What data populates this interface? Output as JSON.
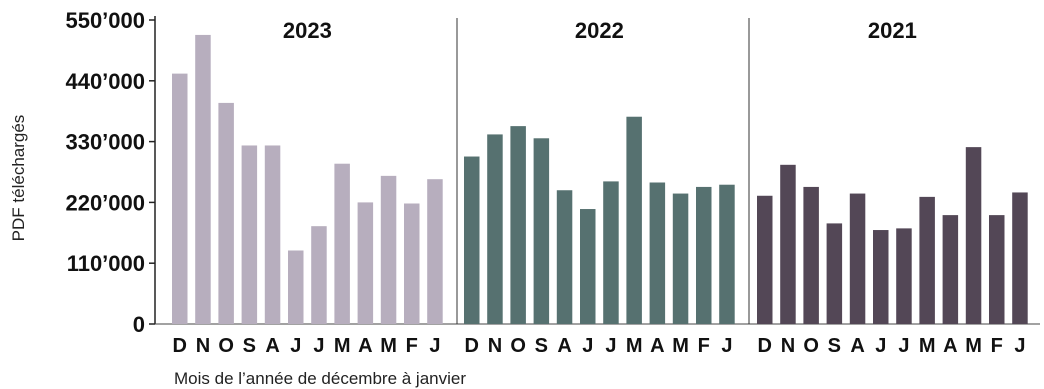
{
  "chart_data": {
    "type": "bar",
    "ylabel": "PDF téléchargés",
    "xlabel": "Mois de l’année de décembre à janvier",
    "ylim": [
      0,
      550000
    ],
    "yticks": [
      0,
      110000,
      220000,
      330000,
      440000,
      550000
    ],
    "ytick_labels": [
      "0",
      "110’000",
      "220’000",
      "330’000",
      "440’000",
      "550’000"
    ],
    "categories": [
      "D",
      "N",
      "O",
      "S",
      "A",
      "J",
      "J",
      "M",
      "A",
      "M",
      "F",
      "J"
    ],
    "series": [
      {
        "name": "2023",
        "color": "#b7aebe",
        "values": [
          453000,
          523000,
          400000,
          323000,
          323000,
          133000,
          177000,
          290000,
          220000,
          268000,
          218000,
          262000
        ]
      },
      {
        "name": "2022",
        "color": "#567170",
        "values": [
          303000,
          343000,
          358000,
          336000,
          242000,
          208000,
          258000,
          375000,
          256000,
          236000,
          248000,
          252000
        ]
      },
      {
        "name": "2021",
        "color": "#534756",
        "values": [
          232000,
          288000,
          248000,
          182000,
          236000,
          170000,
          173000,
          230000,
          197000,
          320000,
          197000,
          238000
        ]
      }
    ],
    "grid": false,
    "legend": "none"
  }
}
